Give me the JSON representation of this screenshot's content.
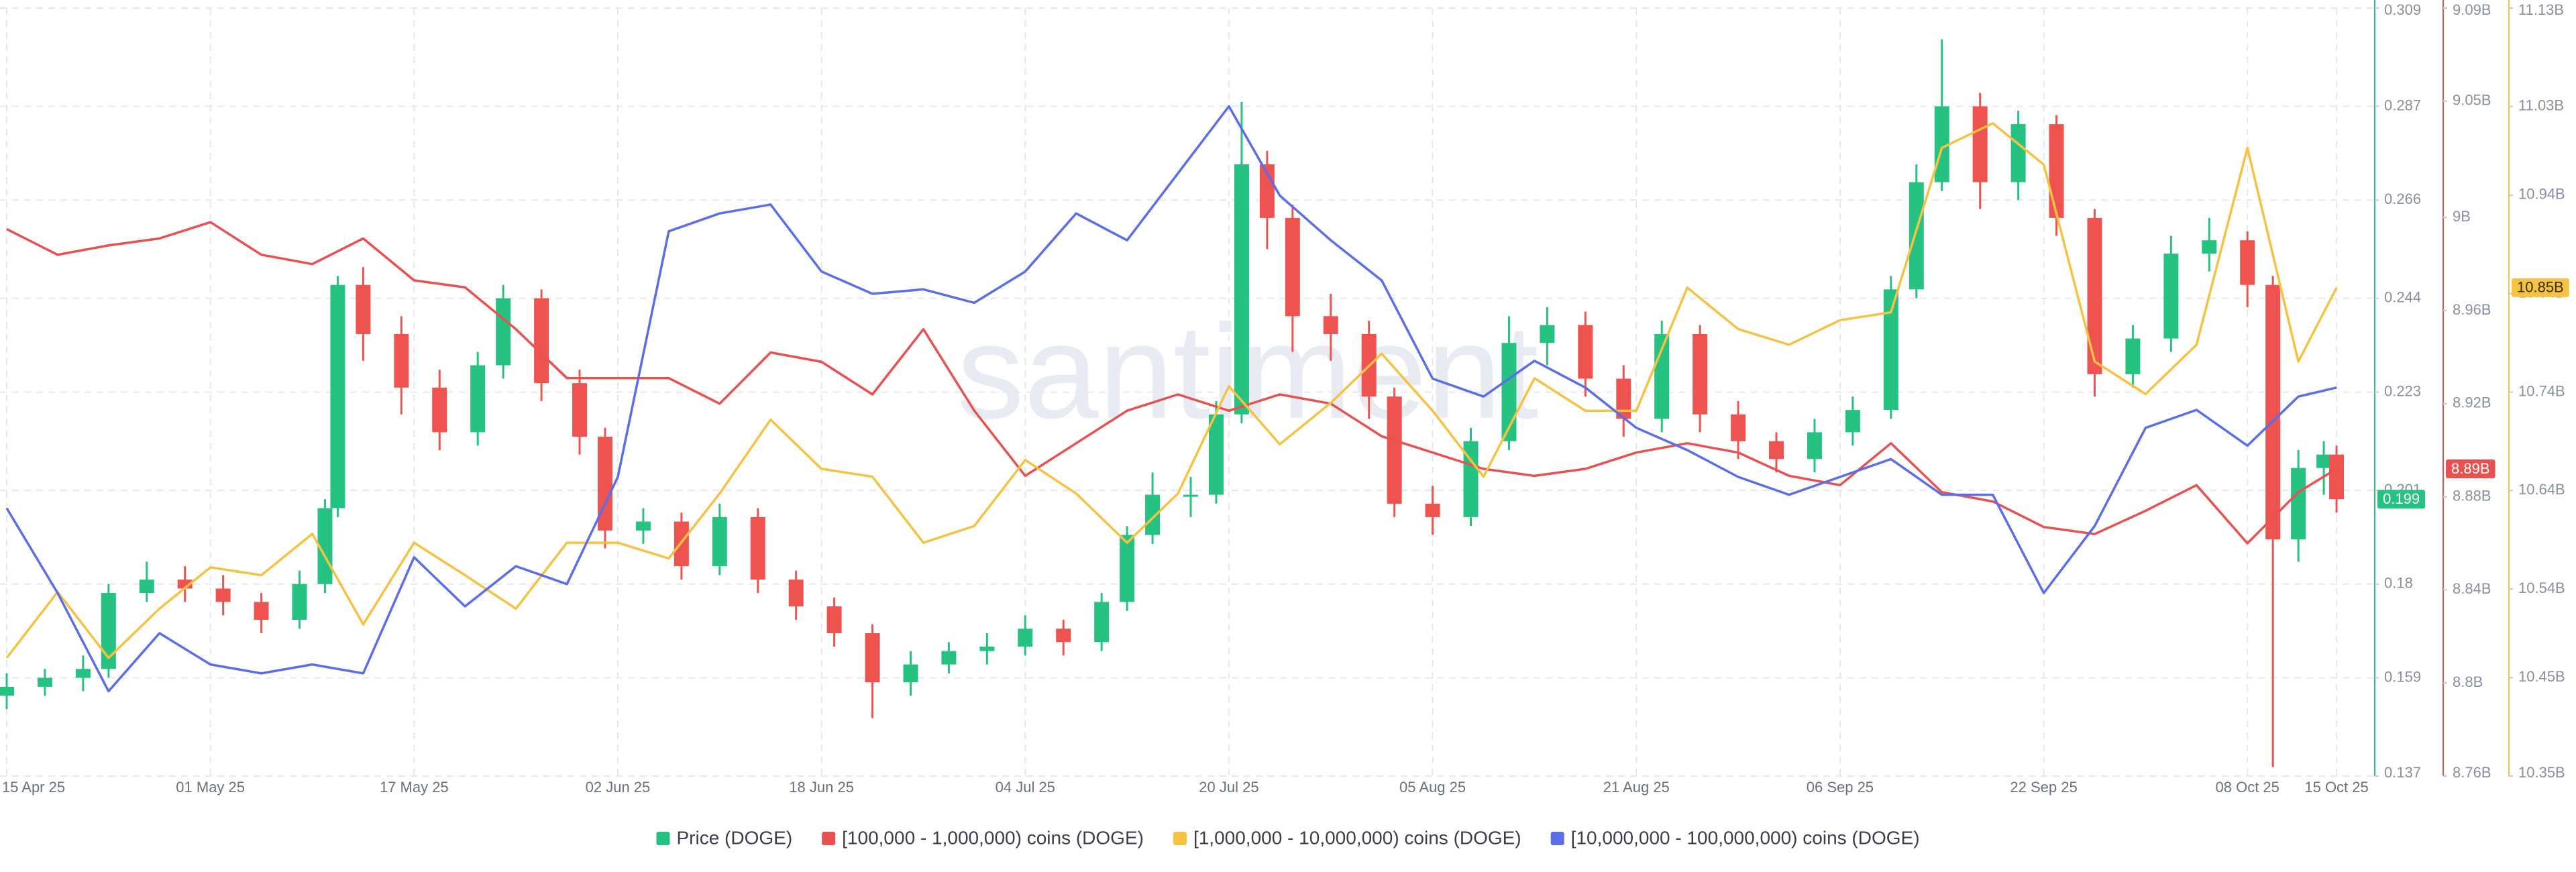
{
  "chart_data": {
    "type": "candlestick",
    "watermark": "santiment",
    "candles": {
      "name": "Price (DOGE)",
      "color": "#26c281",
      "up_color": "#26c281",
      "down_color": "#ef5350",
      "badge": "0.199",
      "x": [
        "15 Apr 25",
        "18 Apr 25",
        "21 Apr 25",
        "23 Apr 25",
        "26 Apr 25",
        "29 Apr 25",
        "02 May 25",
        "05 May 25",
        "08 May 25",
        "10 May 25",
        "11 May 25",
        "13 May 25",
        "16 May 25",
        "19 May 25",
        "22 May 25",
        "24 May 25",
        "27 May 25",
        "30 May 25",
        "01 Jun 25",
        "04 Jun 25",
        "07 Jun 25",
        "10 Jun 25",
        "13 Jun 25",
        "16 Jun 25",
        "19 Jun 25",
        "22 Jun 25",
        "25 Jun 25",
        "28 Jun 25",
        "01 Jul 25",
        "04 Jul 25",
        "07 Jul 25",
        "10 Jul 25",
        "12 Jul 25",
        "14 Jul 25",
        "17 Jul 25",
        "19 Jul 25",
        "21 Jul 25",
        "23 Jul 25",
        "25 Jul 25",
        "28 Jul 25",
        "31 Jul 25",
        "02 Aug 25",
        "05 Aug 25",
        "08 Aug 25",
        "11 Aug 25",
        "14 Aug 25",
        "17 Aug 25",
        "20 Aug 25",
        "23 Aug 25",
        "26 Aug 25",
        "29 Aug 25",
        "01 Sep 25",
        "04 Sep 25",
        "07 Sep 25",
        "10 Sep 25",
        "12 Sep 25",
        "14 Sep 25",
        "17 Sep 25",
        "20 Sep 25",
        "23 Sep 25",
        "26 Sep 25",
        "29 Sep 25",
        "02 Oct 25",
        "05 Oct 25",
        "08 Oct 25",
        "10 Oct 25",
        "12 Oct 25",
        "14 Oct 25",
        "15 Oct 25"
      ],
      "open": [
        0.155,
        0.157,
        0.159,
        0.161,
        0.178,
        0.181,
        0.179,
        0.176,
        0.172,
        0.18,
        0.197,
        0.247,
        0.236,
        0.224,
        0.214,
        0.229,
        0.244,
        0.225,
        0.213,
        0.192,
        0.194,
        0.184,
        0.195,
        0.181,
        0.175,
        0.169,
        0.158,
        0.162,
        0.165,
        0.166,
        0.17,
        0.167,
        0.176,
        0.191,
        0.2,
        0.2,
        0.218,
        0.274,
        0.262,
        0.24,
        0.236,
        0.222,
        0.198,
        0.195,
        0.212,
        0.234,
        0.238,
        0.226,
        0.217,
        0.236,
        0.218,
        0.212,
        0.208,
        0.214,
        0.219,
        0.246,
        0.27,
        0.287,
        0.27,
        0.283,
        0.262,
        0.227,
        0.235,
        0.254,
        0.257,
        0.247,
        0.19,
        0.206,
        0.209
      ],
      "high": [
        0.16,
        0.161,
        0.164,
        0.18,
        0.185,
        0.184,
        0.182,
        0.178,
        0.183,
        0.199,
        0.249,
        0.251,
        0.24,
        0.228,
        0.232,
        0.247,
        0.246,
        0.228,
        0.215,
        0.197,
        0.196,
        0.198,
        0.197,
        0.183,
        0.177,
        0.171,
        0.165,
        0.167,
        0.169,
        0.173,
        0.172,
        0.178,
        0.193,
        0.205,
        0.204,
        0.221,
        0.288,
        0.277,
        0.265,
        0.245,
        0.239,
        0.224,
        0.202,
        0.215,
        0.24,
        0.242,
        0.241,
        0.229,
        0.239,
        0.238,
        0.221,
        0.214,
        0.217,
        0.222,
        0.249,
        0.274,
        0.302,
        0.29,
        0.286,
        0.285,
        0.264,
        0.238,
        0.258,
        0.262,
        0.259,
        0.249,
        0.21,
        0.212,
        0.211
      ],
      "low": [
        0.152,
        0.155,
        0.156,
        0.159,
        0.176,
        0.176,
        0.173,
        0.169,
        0.17,
        0.178,
        0.195,
        0.23,
        0.218,
        0.21,
        0.211,
        0.226,
        0.221,
        0.209,
        0.188,
        0.189,
        0.181,
        0.182,
        0.178,
        0.172,
        0.166,
        0.15,
        0.155,
        0.16,
        0.162,
        0.164,
        0.164,
        0.165,
        0.174,
        0.189,
        0.195,
        0.198,
        0.216,
        0.255,
        0.232,
        0.23,
        0.217,
        0.195,
        0.191,
        0.193,
        0.21,
        0.229,
        0.222,
        0.213,
        0.214,
        0.214,
        0.208,
        0.205,
        0.205,
        0.211,
        0.217,
        0.244,
        0.268,
        0.264,
        0.266,
        0.258,
        0.222,
        0.224,
        0.232,
        0.25,
        0.242,
        0.139,
        0.185,
        0.2,
        0.196
      ],
      "close": [
        0.157,
        0.159,
        0.161,
        0.178,
        0.181,
        0.179,
        0.176,
        0.172,
        0.18,
        0.197,
        0.247,
        0.236,
        0.224,
        0.214,
        0.229,
        0.244,
        0.225,
        0.213,
        0.192,
        0.194,
        0.184,
        0.195,
        0.181,
        0.175,
        0.169,
        0.158,
        0.162,
        0.165,
        0.166,
        0.17,
        0.167,
        0.176,
        0.191,
        0.2,
        0.2,
        0.218,
        0.274,
        0.262,
        0.24,
        0.236,
        0.222,
        0.198,
        0.195,
        0.212,
        0.234,
        0.238,
        0.226,
        0.217,
        0.236,
        0.218,
        0.212,
        0.208,
        0.214,
        0.219,
        0.246,
        0.27,
        0.287,
        0.27,
        0.283,
        0.262,
        0.227,
        0.235,
        0.254,
        0.257,
        0.247,
        0.19,
        0.206,
        0.209,
        0.199
      ]
    },
    "x": [
      "15 Apr 25",
      "19 Apr 25",
      "23 Apr 25",
      "27 Apr 25",
      "01 May 25",
      "05 May 25",
      "09 May 25",
      "13 May 25",
      "17 May 25",
      "21 May 25",
      "25 May 25",
      "29 May 25",
      "02 Jun 25",
      "06 Jun 25",
      "10 Jun 25",
      "14 Jun 25",
      "18 Jun 25",
      "22 Jun 25",
      "26 Jun 25",
      "30 Jun 25",
      "04 Jul 25",
      "08 Jul 25",
      "12 Jul 25",
      "16 Jul 25",
      "20 Jul 25",
      "24 Jul 25",
      "28 Jul 25",
      "01 Aug 25",
      "05 Aug 25",
      "09 Aug 25",
      "13 Aug 25",
      "17 Aug 25",
      "21 Aug 25",
      "25 Aug 25",
      "29 Aug 25",
      "02 Sep 25",
      "06 Sep 25",
      "10 Sep 25",
      "14 Sep 25",
      "18 Sep 25",
      "22 Sep 25",
      "26 Sep 25",
      "30 Sep 25",
      "04 Oct 25",
      "08 Oct 25",
      "12 Oct 25",
      "15 Oct 25"
    ],
    "series": [
      {
        "name": "[100,000  - 1,000,000) coins (DOGE)",
        "color": "#e8514f",
        "axis": "y2",
        "badge": "8.89B",
        "values": [
          8995000000,
          8984000000,
          8988000000,
          8991000000,
          8998000000,
          8984000000,
          8980000000,
          8991000000,
          8973000000,
          8970000000,
          8952000000,
          8931000000,
          8931000000,
          8931000000,
          8920000000,
          8942000000,
          8938000000,
          8924000000,
          8952000000,
          8917000000,
          8889000000,
          8903000000,
          8917000000,
          8924000000,
          8917000000,
          8924000000,
          8920000000,
          8906000000,
          8899000000,
          8892000000,
          8889000000,
          8892000000,
          8899000000,
          8903000000,
          8899000000,
          8889000000,
          8885000000,
          8903000000,
          8882000000,
          8878000000,
          8867000000,
          8864000000,
          8874000000,
          8885000000,
          8860000000,
          8882000000,
          8892000000
        ]
      },
      {
        "name": "[1,000,000 - 10,000,000) coins (DOGE)",
        "color": "#f5c242",
        "axis": "y3",
        "badge": "10.85B",
        "values": [
          10470000000,
          10537000000,
          10470000000,
          10520000000,
          10562000000,
          10554000000,
          10596000000,
          10504000000,
          10587000000,
          10554000000,
          10520000000,
          10587000000,
          10587000000,
          10571000000,
          10637000000,
          10712000000,
          10662000000,
          10654000000,
          10587000000,
          10604000000,
          10671000000,
          10637000000,
          10587000000,
          10637000000,
          10746000000,
          10687000000,
          10729000000,
          10779000000,
          10721000000,
          10654000000,
          10754000000,
          10721000000,
          10721000000,
          10846000000,
          10804000000,
          10788000000,
          10813000000,
          10821000000,
          10988000000,
          11013000000,
          10971000000,
          10771000000,
          10738000000,
          10788000000,
          10988000000,
          10771000000,
          10846000000
        ]
      },
      {
        "name": "[10,000,000 - 100,000,000) coins (DOGE)",
        "color": "#5a6ee8",
        "axis": "y",
        "values": [
          0.197,
          0.178,
          0.156,
          0.169,
          0.162,
          0.16,
          0.162,
          0.16,
          0.186,
          0.175,
          0.184,
          0.18,
          0.204,
          0.259,
          0.263,
          0.265,
          0.25,
          0.245,
          0.246,
          0.243,
          0.25,
          0.263,
          0.257,
          0.272,
          0.287,
          0.267,
          0.257,
          0.248,
          0.226,
          0.222,
          0.23,
          0.224,
          0.215,
          0.21,
          0.204,
          0.2,
          0.204,
          0.208,
          0.2,
          0.2,
          0.178,
          0.193,
          0.215,
          0.219,
          0.211,
          0.222,
          0.224
        ]
      }
    ],
    "xlim": [
      "15 Apr 25",
      "18 Oct 25"
    ],
    "xticks": [
      "15 Apr 25",
      "01 May 25",
      "17 May 25",
      "02 Jun 25",
      "18 Jun 25",
      "04 Jul 25",
      "20 Jul 25",
      "05 Aug 25",
      "21 Aug 25",
      "06 Sep 25",
      "22 Sep 25",
      "08 Oct 25",
      "15 Oct 25"
    ],
    "ylim": [
      0.137,
      0.309
    ],
    "yticks": [
      0.137,
      0.159,
      0.18,
      0.201,
      0.223,
      0.244,
      0.266,
      0.287,
      0.309
    ],
    "y2lim": [
      8760000000,
      9090000000
    ],
    "y2ticks": [
      {
        "value": 8760000000,
        "label": "8.76B"
      },
      {
        "value": 8800000000,
        "label": "8.8B"
      },
      {
        "value": 8840000000,
        "label": "8.84B"
      },
      {
        "value": 8880000000,
        "label": "8.88B"
      },
      {
        "value": 8920000000,
        "label": "8.92B"
      },
      {
        "value": 8960000000,
        "label": "8.96B"
      },
      {
        "value": 9000000000,
        "label": "9B"
      },
      {
        "value": 9050000000,
        "label": "9.05B"
      },
      {
        "value": 9090000000,
        "label": "9.09B"
      }
    ],
    "y3lim": [
      10350000000,
      11130000000
    ],
    "y3ticks": [
      {
        "value": 10350000000,
        "label": "10.35B"
      },
      {
        "value": 10450000000,
        "label": "10.45B"
      },
      {
        "value": 10540000000,
        "label": "10.54B"
      },
      {
        "value": 10640000000,
        "label": "10.64B"
      },
      {
        "value": 10740000000,
        "label": "10.74B"
      },
      {
        "value": 10840000000,
        "label": "10.84B"
      },
      {
        "value": 10940000000,
        "label": "10.94B"
      },
      {
        "value": 11030000000,
        "label": "11.03B"
      },
      {
        "value": 11130000000,
        "label": "11.13B"
      }
    ],
    "grid": true
  }
}
